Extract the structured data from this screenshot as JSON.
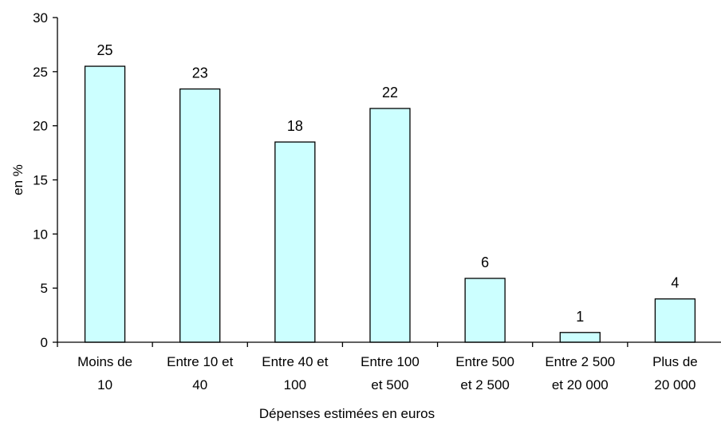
{
  "chart_data": {
    "type": "bar",
    "categories": [
      [
        "Moins de",
        "10"
      ],
      [
        "Entre 10 et",
        "40"
      ],
      [
        "Entre 40 et",
        "100"
      ],
      [
        "Entre 100",
        "et 500"
      ],
      [
        "Entre 500",
        "et 2 500"
      ],
      [
        "Entre 2 500",
        "et 20 000"
      ],
      [
        "Plus de",
        "20 000"
      ]
    ],
    "values": [
      25.5,
      23.4,
      18.5,
      21.6,
      5.9,
      0.9,
      4.0
    ],
    "data_labels": [
      "25",
      "23",
      "18",
      "22",
      "6",
      "1",
      "4"
    ],
    "xlabel": "Dépenses estimées en euros",
    "ylabel": "en %",
    "ylim": [
      0,
      30
    ],
    "yticks": [
      0,
      5,
      10,
      15,
      20,
      25,
      30
    ],
    "grid": false,
    "bar_color": "#ccffff",
    "bar_edge_color": "#000000"
  }
}
